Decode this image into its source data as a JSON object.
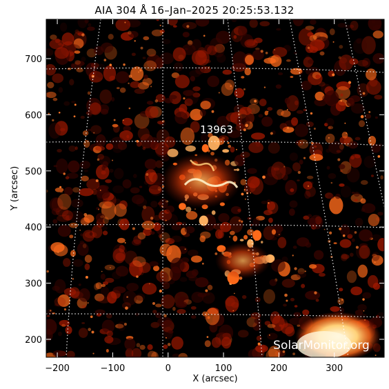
{
  "title": "AIA 304 Å 16–Jan–2025 20:25:53.132",
  "axes": {
    "xlabel": "X (arcsec)",
    "ylabel": "Y (arcsec)",
    "xlim": [
      -220,
      390
    ],
    "ylim": [
      168,
      770
    ],
    "xticks": [
      -200,
      -100,
      0,
      100,
      200,
      300
    ],
    "yticks": [
      200,
      300,
      400,
      500,
      600,
      700
    ]
  },
  "region_label": "13963",
  "watermark": "SolarMonitor.org",
  "colors": {
    "background": "#000000",
    "plasma_dark": "#3a0400",
    "plasma_mid": "#a01800",
    "plasma_bright": "#ff6a1a",
    "plasma_hot": "#fff2d0",
    "grid": "#ffffff"
  }
}
